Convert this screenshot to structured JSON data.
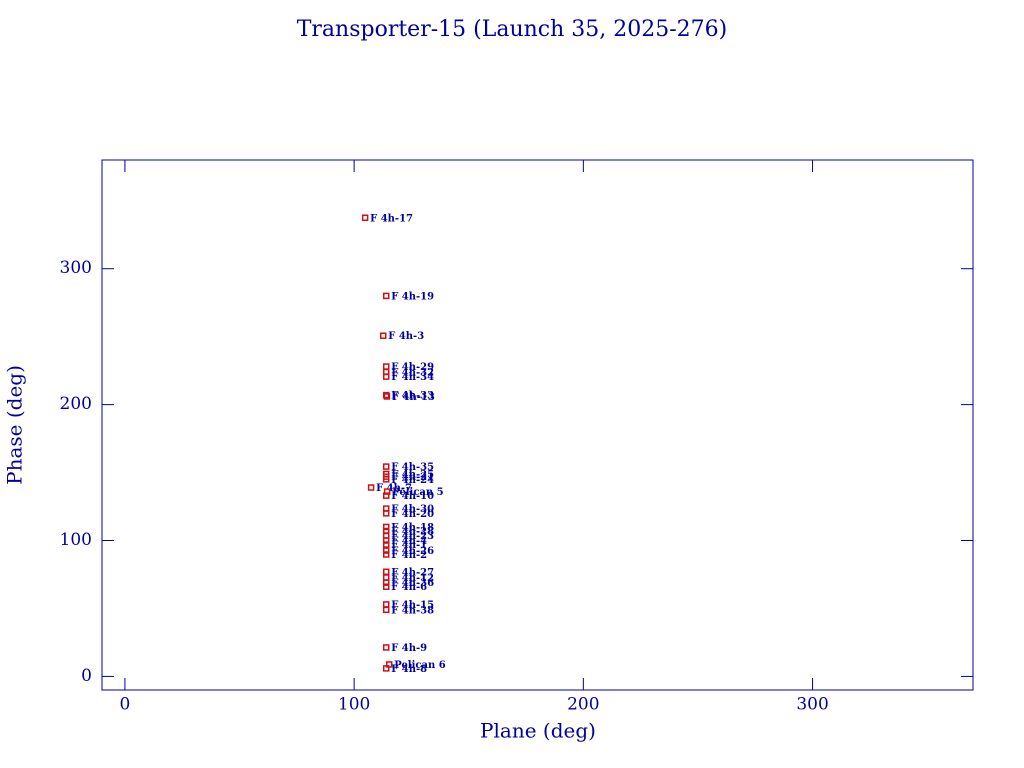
{
  "chart_data": {
    "type": "scatter",
    "title": "Transporter-15 (Launch 35, 2025-276)",
    "x_label": "Plane (deg)",
    "y_label": "Phase (deg)",
    "xlim": [
      -10,
      370
    ],
    "ylim": [
      -10,
      380
    ],
    "xticks": [
      0,
      100,
      200,
      300
    ],
    "yticks": [
      0,
      100,
      200,
      300
    ],
    "point_color": "#d01010",
    "label_color": "#0000a0",
    "point_labels": [
      "F 4h-17",
      "F 4h-19",
      "F 4h-3",
      "F 4h-29",
      "F 4h-32",
      "F 4h-34",
      "F 4h-33",
      "F 4h-13",
      "F 4h-35",
      "F 4h-25",
      "F 4h-21",
      "F 4h-24",
      "F 4h-7",
      "Pelican 5",
      "F 4h-10",
      "F 4h-30",
      "F 4h-20",
      "F 4h-18",
      "F 4h-28",
      "F 4h-23",
      "F 4h-4",
      "F 4h-1",
      "F 4h-26",
      "F 4h-2",
      "F 4h-27",
      "F 4h-12",
      "F 4h-36",
      "F 4h-6",
      "F 4h-15",
      "F 4h-38",
      "F 4h-9",
      "Pelican 6",
      "F 4h-8"
    ],
    "x": [
      104.8,
      114,
      112.7,
      114,
      114,
      114,
      114,
      114.3,
      114,
      114,
      114,
      114,
      107.4,
      114.4,
      114,
      114,
      114,
      114,
      114,
      114,
      114,
      114,
      114,
      114,
      114,
      114,
      114,
      114,
      114,
      114,
      114,
      115.3,
      114
    ],
    "values": [
      337.5,
      280,
      250.7,
      228,
      224,
      220.6,
      207,
      206,
      154.4,
      149,
      147,
      145,
      139,
      136,
      133,
      123.5,
      120,
      110,
      107,
      103.7,
      100,
      97,
      92.6,
      89.7,
      77,
      72.8,
      69,
      66,
      53,
      49,
      21.3,
      8.8,
      5.9
    ]
  }
}
